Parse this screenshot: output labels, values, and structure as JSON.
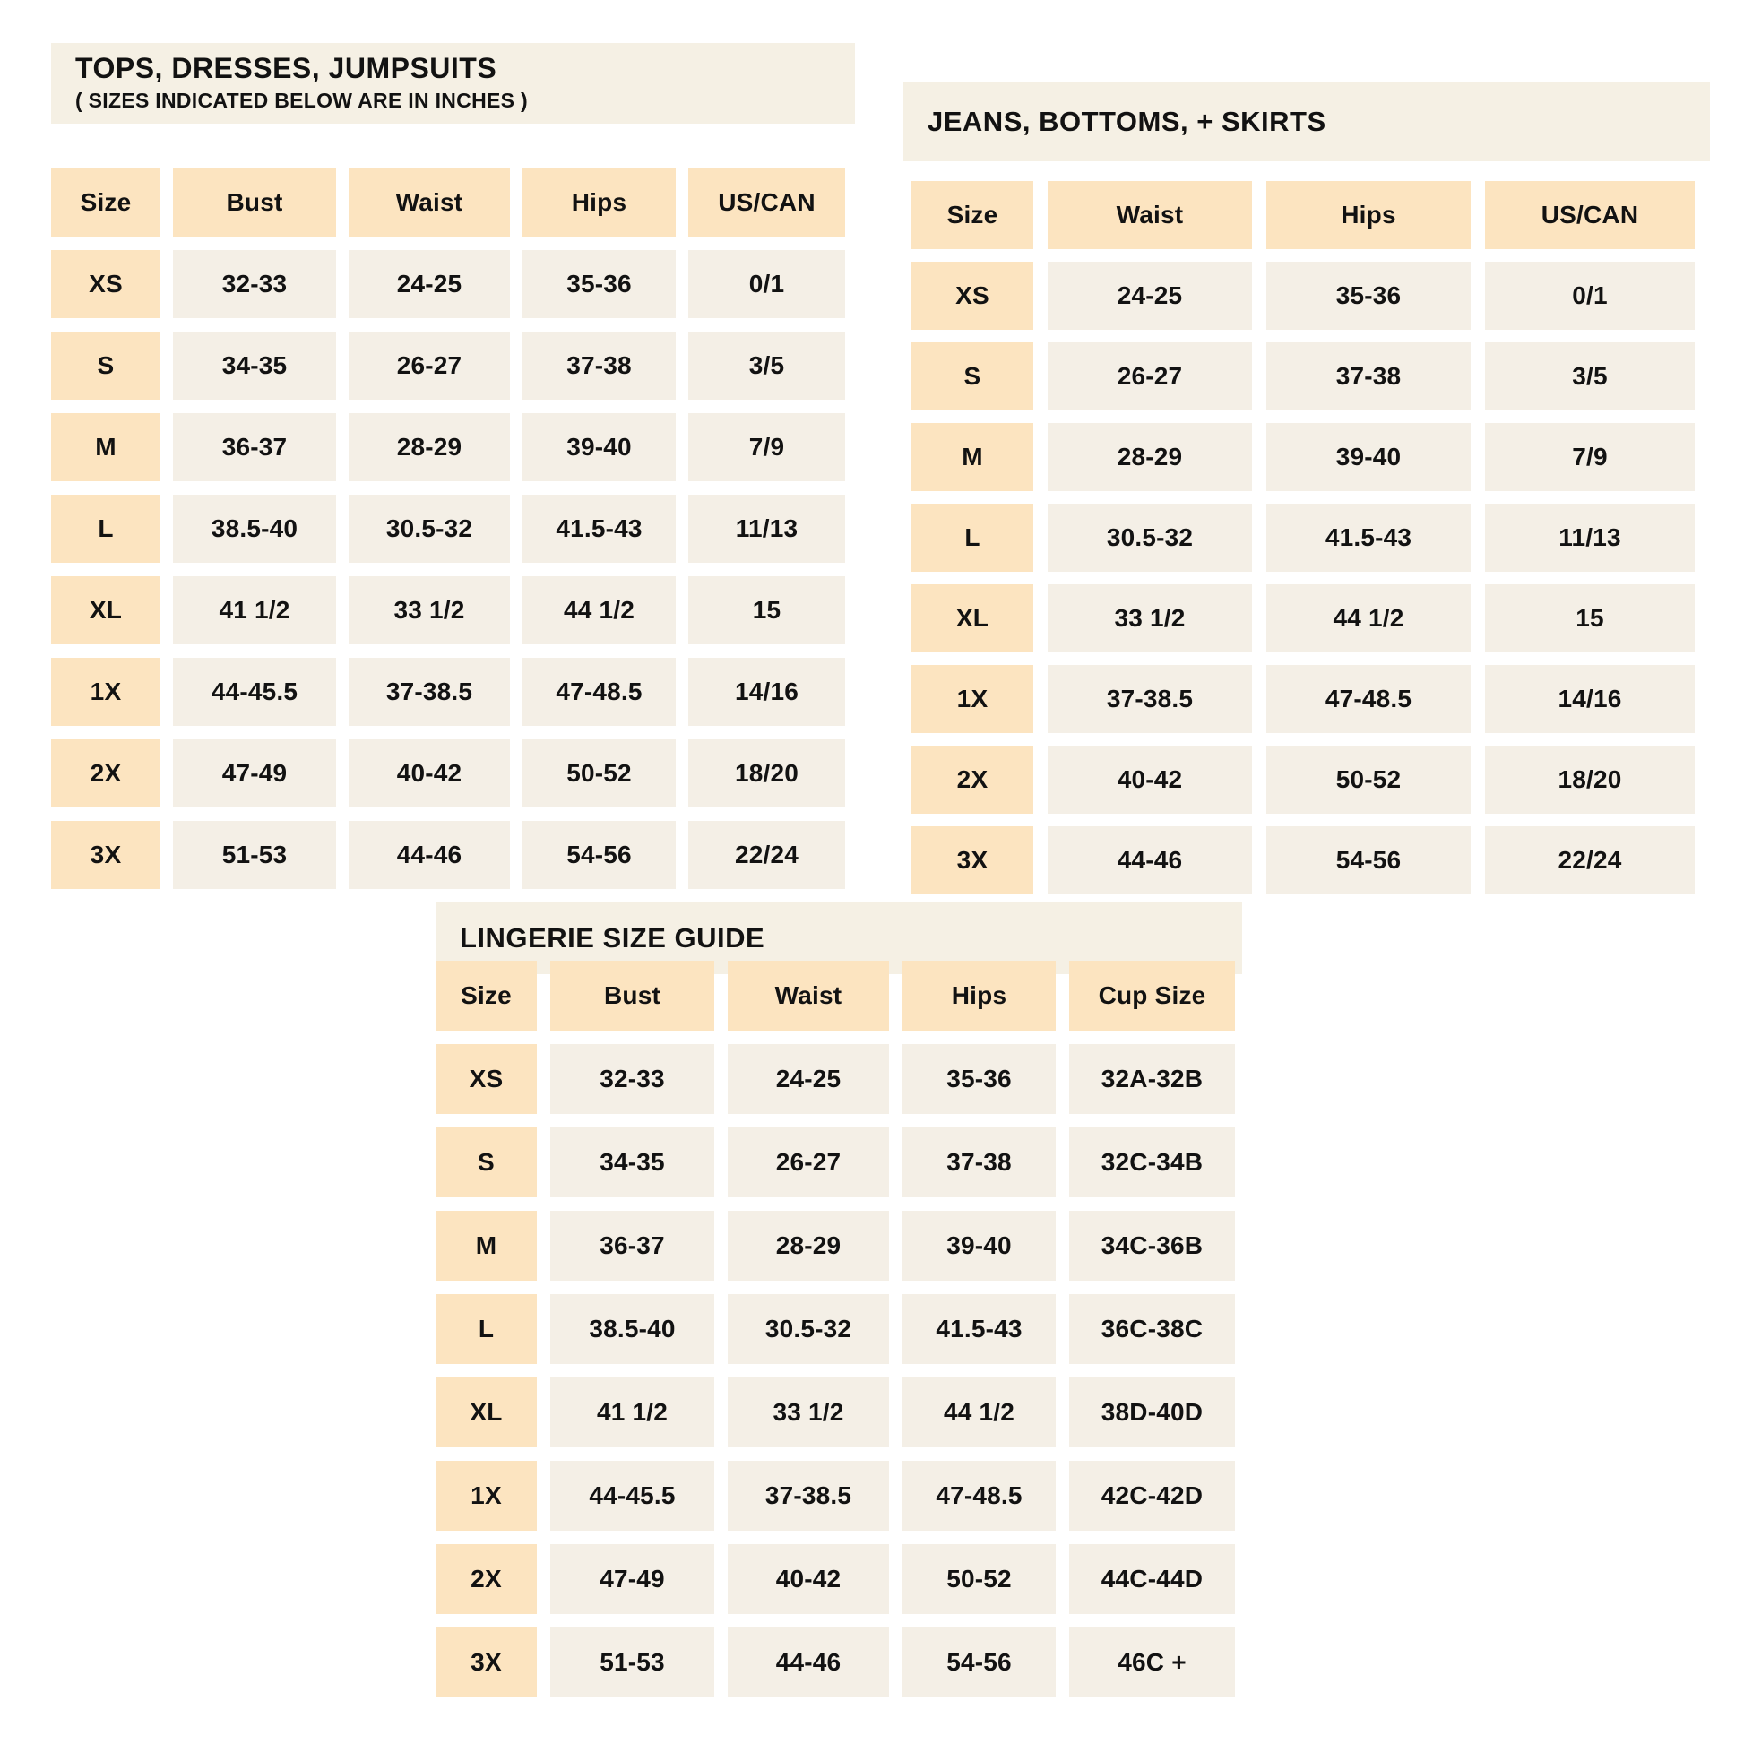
{
  "colors": {
    "header_cell": "#FCE4C0",
    "data_cell": "#F4EFE6",
    "title_band": "#F5F0E4",
    "text": "#121212",
    "background": "#FFFFFF"
  },
  "tables": [
    {
      "id": "tops",
      "title": "TOPS, DRESSES, JUMPSUITS",
      "subtitle": "( SIZES INDICATED BELOW ARE IN INCHES )",
      "columns": [
        "Size",
        "Bust",
        "Waist",
        "Hips",
        "US/CAN"
      ],
      "rows": [
        [
          "XS",
          "32-33",
          "24-25",
          "35-36",
          "0/1"
        ],
        [
          "S",
          "34-35",
          "26-27",
          "37-38",
          "3/5"
        ],
        [
          "M",
          "36-37",
          "28-29",
          "39-40",
          "7/9"
        ],
        [
          "L",
          "38.5-40",
          "30.5-32",
          "41.5-43",
          "11/13"
        ],
        [
          "XL",
          "41 1/2",
          "33 1/2",
          "44 1/2",
          "15"
        ],
        [
          "1X",
          "44-45.5",
          "37-38.5",
          "47-48.5",
          "14/16"
        ],
        [
          "2X",
          "47-49",
          "40-42",
          "50-52",
          "18/20"
        ],
        [
          "3X",
          "51-53",
          "44-46",
          "54-56",
          "22/24"
        ]
      ]
    },
    {
      "id": "jeans",
      "title": "JEANS, BOTTOMS, + SKIRTS",
      "columns": [
        "Size",
        "Waist",
        "Hips",
        "US/CAN"
      ],
      "rows": [
        [
          "XS",
          "24-25",
          "35-36",
          "0/1"
        ],
        [
          "S",
          "26-27",
          "37-38",
          "3/5"
        ],
        [
          "M",
          "28-29",
          "39-40",
          "7/9"
        ],
        [
          "L",
          "30.5-32",
          "41.5-43",
          "11/13"
        ],
        [
          "XL",
          "33 1/2",
          "44 1/2",
          "15"
        ],
        [
          "1X",
          "37-38.5",
          "47-48.5",
          "14/16"
        ],
        [
          "2X",
          "40-42",
          "50-52",
          "18/20"
        ],
        [
          "3X",
          "44-46",
          "54-56",
          "22/24"
        ]
      ]
    },
    {
      "id": "lingerie",
      "title": "LINGERIE SIZE GUIDE",
      "columns": [
        "Size",
        "Bust",
        "Waist",
        "Hips",
        "Cup Size"
      ],
      "rows": [
        [
          "XS",
          "32-33",
          "24-25",
          "35-36",
          "32A-32B"
        ],
        [
          "S",
          "34-35",
          "26-27",
          "37-38",
          "32C-34B"
        ],
        [
          "M",
          "36-37",
          "28-29",
          "39-40",
          "34C-36B"
        ],
        [
          "L",
          "38.5-40",
          "30.5-32",
          "41.5-43",
          "36C-38C"
        ],
        [
          "XL",
          "41 1/2",
          "33 1/2",
          "44 1/2",
          "38D-40D"
        ],
        [
          "1X",
          "44-45.5",
          "37-38.5",
          "47-48.5",
          "42C-42D"
        ],
        [
          "2X",
          "47-49",
          "40-42",
          "50-52",
          "44C-44D"
        ],
        [
          "3X",
          "51-53",
          "44-46",
          "54-56",
          "46C +"
        ]
      ]
    }
  ]
}
